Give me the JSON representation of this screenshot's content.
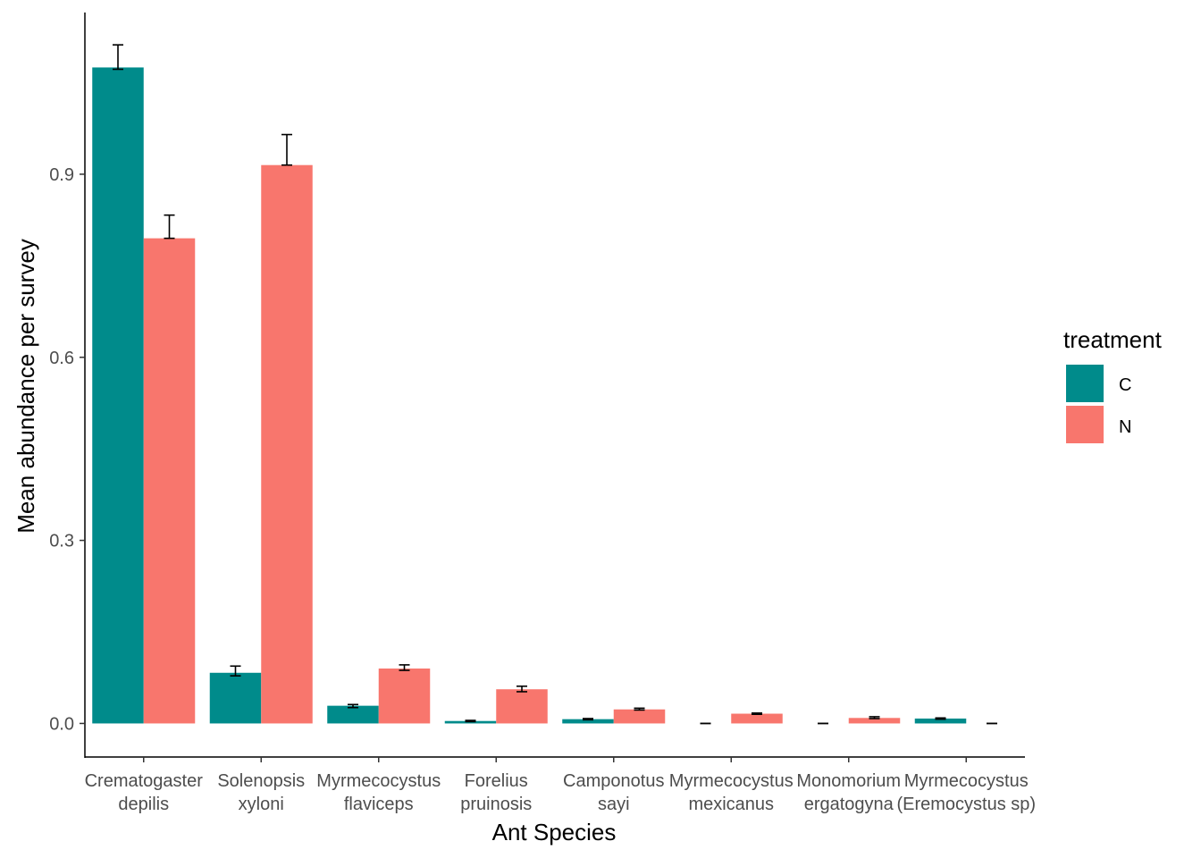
{
  "chart_data": {
    "type": "bar",
    "xlabel": "Ant Species",
    "ylabel": "Mean abundance per survey",
    "ylim": [
      -0.055,
      1.165
    ],
    "yticks": [
      0.0,
      0.3,
      0.6,
      0.9
    ],
    "ytick_labels": [
      "0.0",
      "0.3",
      "0.6",
      "0.9"
    ],
    "grid": false,
    "legend": {
      "title": "treatment",
      "position": "right"
    },
    "categories": [
      [
        "Crematogaster",
        "depilis"
      ],
      [
        "Solenopsis",
        "xyloni"
      ],
      [
        "Myrmecocystus",
        "flaviceps"
      ],
      [
        "Forelius",
        "pruinosis"
      ],
      [
        "Camponotus",
        "sayi"
      ],
      [
        "Myrmecocystus",
        "mexicanus"
      ],
      [
        "Monomorium",
        "ergatogyna"
      ],
      [
        "Myrmecocystus",
        "(Eremocystus sp)"
      ]
    ],
    "series": [
      {
        "name": "C",
        "color": "#008B8B",
        "values": [
          1.075,
          0.083,
          0.029,
          0.004,
          0.007,
          0.0,
          0.0,
          0.008
        ],
        "error_low": [
          1.072,
          0.078,
          0.026,
          0.003,
          0.006,
          0.0,
          0.0,
          0.007
        ],
        "error_high": [
          1.112,
          0.094,
          0.031,
          0.005,
          0.008,
          0.0,
          0.0,
          0.009
        ]
      },
      {
        "name": "N",
        "color": "#F8766D",
        "values": [
          0.795,
          0.915,
          0.09,
          0.056,
          0.023,
          0.016,
          0.009,
          0.0
        ],
        "error_low": [
          0.795,
          0.915,
          0.087,
          0.052,
          0.022,
          0.015,
          0.008,
          0.0
        ],
        "error_high": [
          0.833,
          0.965,
          0.096,
          0.061,
          0.025,
          0.017,
          0.011,
          0.0
        ]
      }
    ]
  }
}
